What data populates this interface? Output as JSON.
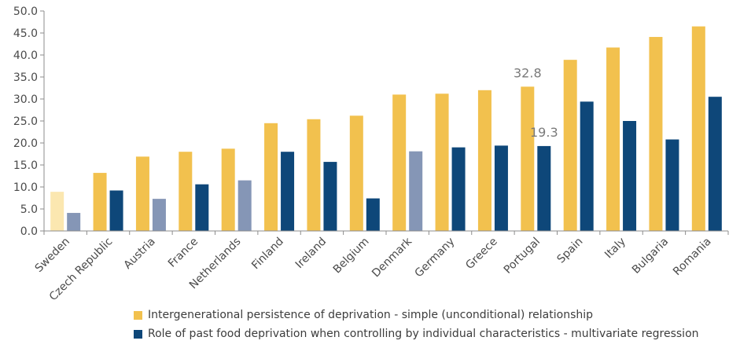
{
  "chart_data": {
    "type": "bar",
    "title": "",
    "xlabel": "",
    "ylabel": "",
    "ylim": [
      0,
      50
    ],
    "yticks": [
      "0.0",
      "5.0",
      "10.0",
      "15.0",
      "20.0",
      "25.0",
      "30.0",
      "35.0",
      "40.0",
      "45.0",
      "50.0"
    ],
    "grid": false,
    "legend_position": "bottom",
    "categories": [
      "Sweden",
      "Czech Republic",
      "Austria",
      "France",
      "Netherlands",
      "Finland",
      "Ireland",
      "Belgium",
      "Denmark",
      "Germany",
      "Greece",
      "Portugal",
      "Spain",
      "Italy",
      "Bulgaria",
      "Romania"
    ],
    "series": [
      {
        "name": "Intergenerational persistence of deprivation - simple (unconditional) relationship",
        "color": "#f2c14e",
        "muted_color": "#fbe7b0",
        "muted_indices": [
          0
        ],
        "values": [
          8.9,
          13.2,
          16.9,
          18.0,
          18.7,
          24.5,
          25.4,
          26.2,
          31.0,
          31.2,
          32.0,
          32.8,
          38.9,
          41.7,
          44.1,
          46.5
        ]
      },
      {
        "name": "Role of past food deprivation when controlling by individual characteristics  - multivariate regression",
        "color": "#0e4779",
        "muted_color": "#8596b6",
        "muted_indices": [
          0,
          2,
          4,
          8
        ],
        "values": [
          4.1,
          9.2,
          7.3,
          10.6,
          11.5,
          18.0,
          15.7,
          7.4,
          18.1,
          19.0,
          19.4,
          19.3,
          29.4,
          25.0,
          20.8,
          30.5
        ]
      }
    ],
    "data_labels": [
      {
        "series": 0,
        "index": 11,
        "text": "32.8"
      },
      {
        "series": 1,
        "index": 11,
        "text": "19.3"
      }
    ]
  }
}
